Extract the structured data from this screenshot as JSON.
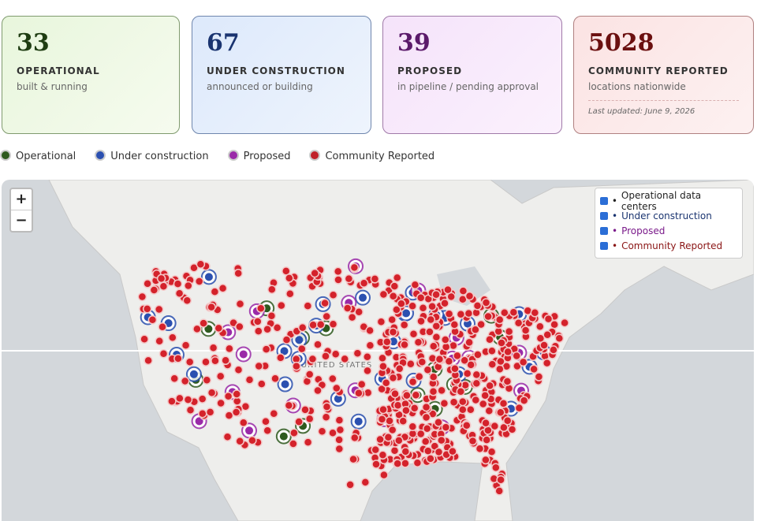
{
  "cards": [
    {
      "value": "33",
      "label": "OPERATIONAL",
      "subtitle": "built & running"
    },
    {
      "value": "67",
      "label": "UNDER CONSTRUCTION",
      "subtitle": "announced or building"
    },
    {
      "value": "39",
      "label": "PROPOSED",
      "subtitle": "in pipeline / pending approval"
    },
    {
      "value": "5028",
      "label": "COMMUNITY REPORTED",
      "subtitle": "locations nationwide",
      "note": "Last updated: June 9, 2026"
    }
  ],
  "legend": [
    "Operational",
    "Under construction",
    "Proposed",
    "Community Reported"
  ],
  "map": {
    "zoom_in": "+",
    "zoom_out": "−",
    "country_label": "UNITED STATES",
    "layers": [
      "Operational data centers",
      "Under construction",
      "Proposed",
      "Community Reported"
    ]
  }
}
